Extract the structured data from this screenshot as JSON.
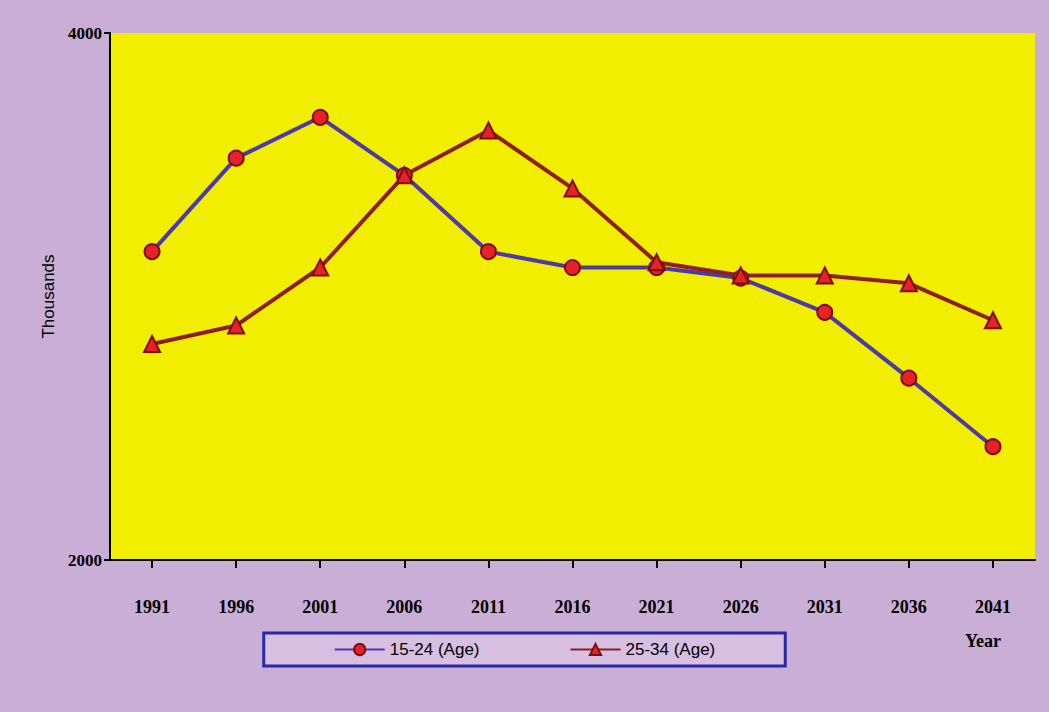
{
  "chart_data": {
    "type": "line",
    "x_label": "Year",
    "y_label": "Thousands",
    "categories": [
      "1991",
      "1996",
      "2001",
      "2006",
      "2011",
      "2016",
      "2021",
      "2026",
      "2031",
      "2036",
      "2041"
    ],
    "series": [
      {
        "name": "15-24 (Age)",
        "color": "#4b3aa8",
        "marker": "circle",
        "values": [
          3170,
          3525,
          3680,
          3460,
          3170,
          3110,
          3110,
          3070,
          2940,
          2690,
          2430
        ]
      },
      {
        "name": "25-34 (Age)",
        "color": "#8e1f1f",
        "marker": "triangle",
        "values": [
          2820,
          2890,
          3110,
          3460,
          3630,
          3410,
          3130,
          3080,
          3080,
          3050,
          2910
        ]
      }
    ],
    "ylim": [
      2000,
      4000
    ],
    "yticks": [
      2000,
      4000
    ],
    "grid": false,
    "legend": "bottom"
  }
}
